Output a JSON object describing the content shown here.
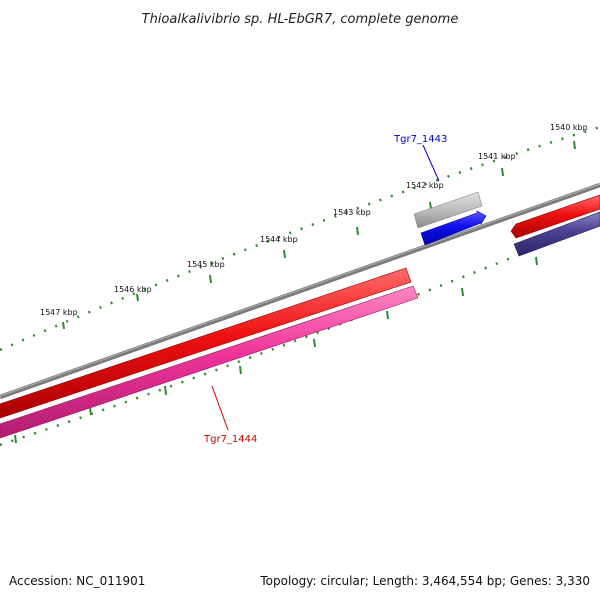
{
  "title": "Thioalkalivibrio sp. HL-EbGR7, complete genome",
  "footer": {
    "accession": "Accession: NC_011901",
    "summary": "Topology: circular; Length: 3,464,554 bp; Genes: 3,330"
  },
  "colors": {
    "backbone": "#808080",
    "tick": "#2e8b2e",
    "forward_cds": "#ee1111",
    "reverse_pink": "#ee3399",
    "reverse_navy": "#4a4090",
    "blue_cds": "#1111ee",
    "gray_feature": "#b4b4b4",
    "label_blue": "#0000cc",
    "label_red": "#cc0000"
  },
  "tick_labels": [
    "1540 kbp",
    "1541 kbp",
    "1542 kbp",
    "1543 kbp",
    "1544 kbp",
    "1545 kbp",
    "1546 kbp",
    "1547 kbp"
  ],
  "genes": [
    {
      "name": "Tgr7_1443",
      "color": "label_blue"
    },
    {
      "name": "Tgr7_1444",
      "color": "label_red"
    }
  ]
}
